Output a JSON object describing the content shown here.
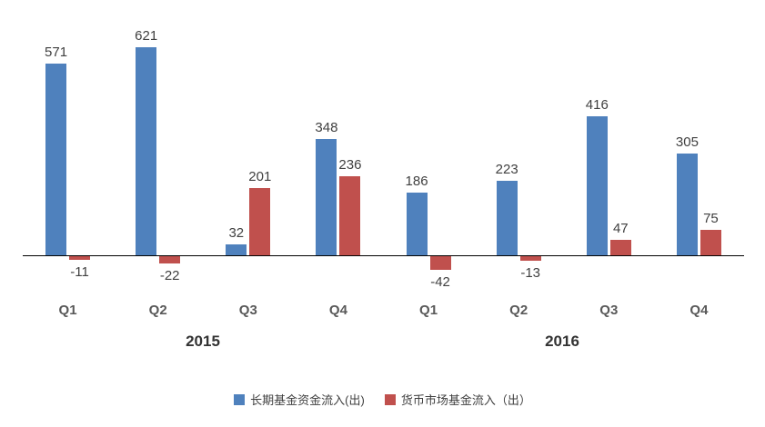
{
  "chart_data": {
    "type": "bar",
    "categories": [
      "Q1",
      "Q2",
      "Q3",
      "Q4",
      "Q1",
      "Q2",
      "Q3",
      "Q4"
    ],
    "series": [
      {
        "name": "长期基金资金流入(出)",
        "color": "#4F81BD",
        "values": [
          571,
          621,
          32,
          348,
          186,
          223,
          416,
          305
        ]
      },
      {
        "name": "货币市场基金流入（出）",
        "color": "#C0504D",
        "values": [
          -11,
          -22,
          201,
          236,
          -42,
          -13,
          47,
          75
        ]
      }
    ],
    "year_groups": [
      {
        "label": "2015",
        "start": 0,
        "end": 3
      },
      {
        "label": "2016",
        "start": 4,
        "end": 7
      }
    ],
    "xlabel": "",
    "ylabel": "",
    "ylim": [
      -100,
      680
    ],
    "grid": false,
    "legend_position": "bottom",
    "axis_color": "#000000",
    "data_labels_shown": true
  }
}
